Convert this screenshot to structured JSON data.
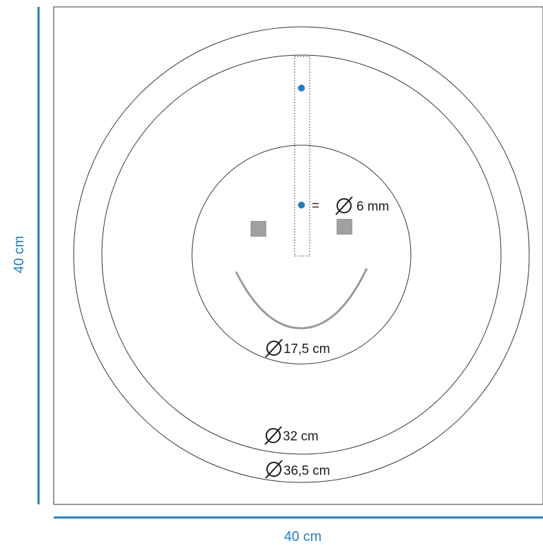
{
  "dimensions": {
    "width_label": "40 cm",
    "height_label": "40 cm"
  },
  "labels": {
    "hole_diameter": "6 mm",
    "hole_equals": "=",
    "inner_circle": "17,5 cm",
    "middle_circle": "32 cm",
    "outer_circle": "36,5 cm"
  },
  "diameter_symbol": "diameter-icon",
  "colors": {
    "dimension": "#1e7fc8",
    "outline": "#333333",
    "feature_gray": "#a0a0a0",
    "hole_dot": "#1e7fc8"
  }
}
